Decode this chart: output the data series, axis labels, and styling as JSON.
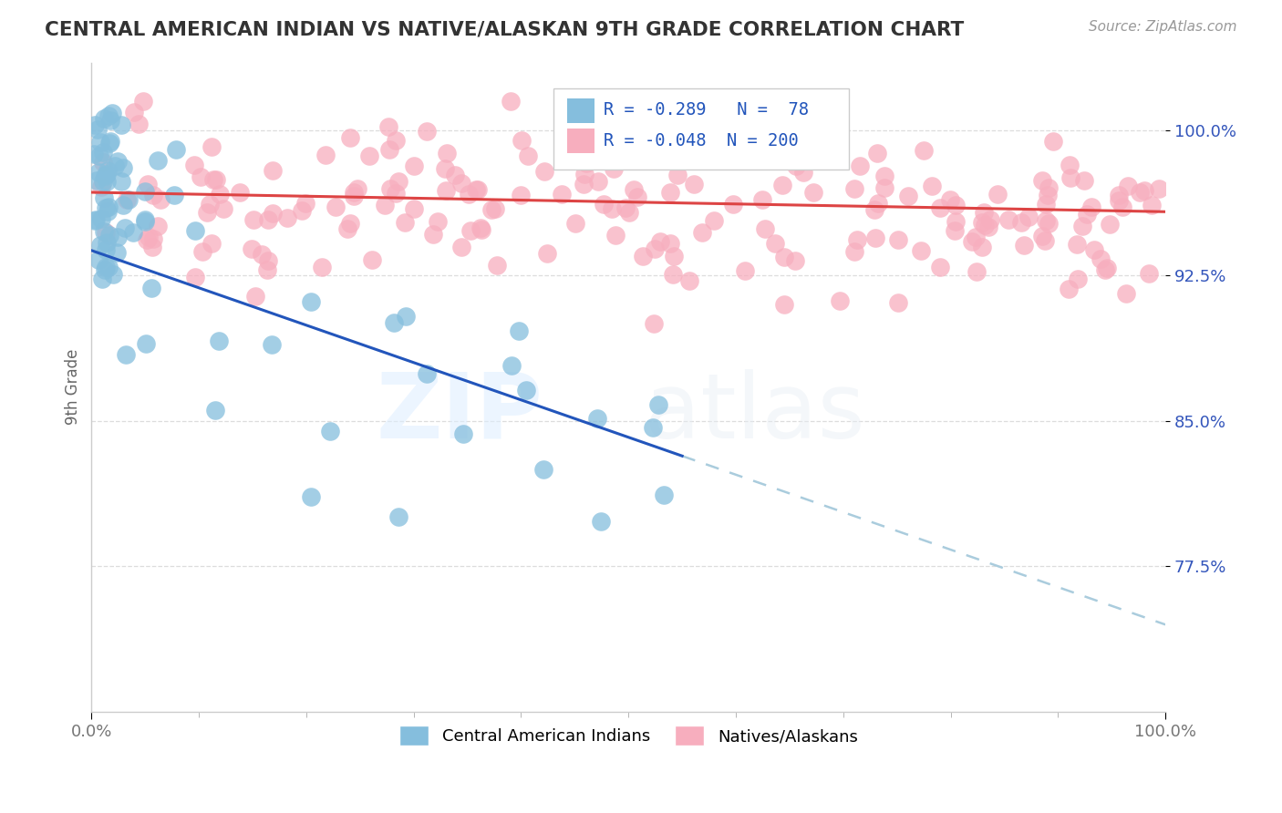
{
  "title": "CENTRAL AMERICAN INDIAN VS NATIVE/ALASKAN 9TH GRADE CORRELATION CHART",
  "source_text": "Source: ZipAtlas.com",
  "ylabel": "9th Grade",
  "xlim": [
    0.0,
    100.0
  ],
  "ylim": [
    70.0,
    103.5
  ],
  "yticks": [
    77.5,
    85.0,
    92.5,
    100.0
  ],
  "xtick_positions": [
    0.0,
    100.0
  ],
  "xticklabels": [
    "0.0%",
    "100.0%"
  ],
  "legend_r1": "R = -0.289",
  "legend_n1": "N =  78",
  "legend_r2": "R = -0.048",
  "legend_n2": "N = 200",
  "color_blue": "#85BEDD",
  "color_pink": "#F7AEBE",
  "trendline_blue_color": "#2255BB",
  "trendline_pink_color": "#DD4444",
  "trendline_dash_color": "#AACCDD",
  "watermark_zip": "ZIP",
  "watermark_atlas": "atlas",
  "background_color": "#FFFFFF",
  "blue_trend_x0": 0.0,
  "blue_trend_y0": 93.8,
  "blue_trend_x1": 55.0,
  "blue_trend_y1": 83.2,
  "blue_dash_x0": 55.0,
  "blue_dash_y0": 83.2,
  "blue_dash_x1": 100.0,
  "blue_dash_y1": 74.5,
  "pink_trend_x0": 0.0,
  "pink_trend_y0": 96.8,
  "pink_trend_x1": 100.0,
  "pink_trend_y1": 95.8,
  "grid_y_color": "#DDDDDD",
  "tick_color_right": "#3355BB",
  "tick_color_bottom": "#777777",
  "legend_box_color": "#FFFFFF",
  "legend_box_edge": "#CCCCCC"
}
